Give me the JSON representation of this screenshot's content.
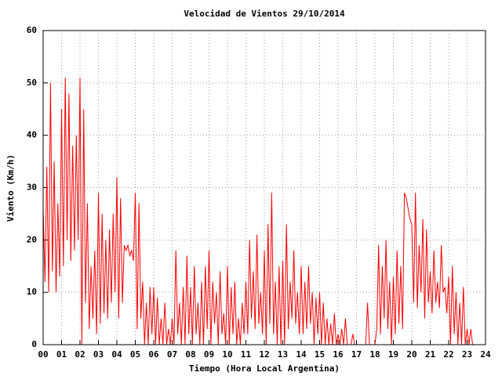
{
  "chart_data": {
    "type": "line",
    "title": "Velocidad de Vientos 29/10/2014",
    "x_label": "Tiempo (Hora Local Argentina)",
    "y_label": "Viento (Km/h)",
    "xlim": [
      0,
      24
    ],
    "ylim": [
      0,
      60
    ],
    "xticks": [
      {
        "value": 0,
        "label": "00"
      },
      {
        "value": 1,
        "label": "01"
      },
      {
        "value": 2,
        "label": "02"
      },
      {
        "value": 3,
        "label": "03"
      },
      {
        "value": 4,
        "label": "04"
      },
      {
        "value": 5,
        "label": "05"
      },
      {
        "value": 6,
        "label": "06"
      },
      {
        "value": 7,
        "label": "07"
      },
      {
        "value": 8,
        "label": "08"
      },
      {
        "value": 9,
        "label": "09"
      },
      10,
      11,
      12,
      13,
      14,
      15,
      16,
      17,
      18,
      19,
      20,
      21,
      22,
      23,
      24
    ],
    "yticks": [
      0,
      10,
      20,
      30,
      40,
      50,
      60
    ],
    "grid": true,
    "series": [
      {
        "color": "#ff0000",
        "x": [
          0,
          0.1,
          0.2,
          0.3,
          0.4,
          0.5,
          0.6,
          0.7,
          0.8,
          0.9,
          1,
          1.1,
          1.2,
          1.3,
          1.4,
          1.5,
          1.6,
          1.7,
          1.8,
          1.9,
          2,
          2.1,
          2.2,
          2.3,
          2.4,
          2.5,
          2.6,
          2.7,
          2.8,
          2.9,
          3,
          3.1,
          3.2,
          3.3,
          3.4,
          3.5,
          3.6,
          3.7,
          3.8,
          3.9,
          4,
          4.1,
          4.2,
          4.3,
          4.4,
          4.5,
          4.6,
          4.7,
          4.8,
          4.9,
          5,
          5.1,
          5.2,
          5.3,
          5.4,
          5.5,
          5.6,
          5.7,
          5.8,
          5.9,
          6,
          6.1,
          6.2,
          6.3,
          6.4,
          6.5,
          6.6,
          6.7,
          6.8,
          6.9,
          7,
          7.1,
          7.2,
          7.3,
          7.4,
          7.5,
          7.6,
          7.7,
          7.8,
          7.9,
          8,
          8.1,
          8.2,
          8.3,
          8.4,
          8.5,
          8.6,
          8.7,
          8.8,
          8.9,
          9,
          9.1,
          9.2,
          9.3,
          9.4,
          9.5,
          9.6,
          9.7,
          9.8,
          9.9,
          10,
          10.1,
          10.2,
          10.3,
          10.4,
          10.5,
          10.6,
          10.7,
          10.8,
          10.9,
          11,
          11.1,
          11.2,
          11.3,
          11.4,
          11.5,
          11.6,
          11.7,
          11.8,
          11.9,
          12,
          12.1,
          12.2,
          12.3,
          12.4,
          12.5,
          12.6,
          12.7,
          12.8,
          12.9,
          13,
          13.1,
          13.2,
          13.3,
          13.4,
          13.5,
          13.6,
          13.7,
          13.8,
          13.9,
          14,
          14.1,
          14.2,
          14.3,
          14.4,
          14.5,
          14.6,
          14.7,
          14.8,
          14.9,
          15,
          15.1,
          15.2,
          15.3,
          15.4,
          15.5,
          15.6,
          15.7,
          15.8,
          15.9,
          16,
          16.1,
          16.2,
          16.3,
          16.4,
          16.5,
          16.6,
          16.7,
          16.8,
          16.9,
          17,
          17.1,
          17.2,
          17.3,
          17.4,
          17.5,
          17.6,
          17.7,
          17.8,
          17.9,
          18,
          18.1,
          18.2,
          18.3,
          18.4,
          18.5,
          18.6,
          18.7,
          18.8,
          18.9,
          19,
          19.1,
          19.2,
          19.3,
          19.4,
          19.5,
          19.6,
          19.7,
          19.8,
          19.9,
          20,
          20.1,
          20.2,
          20.3,
          20.4,
          20.5,
          20.6,
          20.7,
          20.8,
          20.9,
          21,
          21.1,
          21.2,
          21.3,
          21.4,
          21.5,
          21.6,
          21.7,
          21.8,
          21.9,
          22,
          22.1,
          22.2,
          22.3,
          22.4,
          22.5,
          22.6,
          22.7,
          22.8,
          22.9,
          23,
          23.1,
          23.2,
          23.3
        ],
        "values": [
          26,
          12,
          34,
          10,
          50,
          14,
          35,
          10,
          27,
          13,
          45,
          15,
          51,
          20,
          48,
          16,
          38,
          18,
          40,
          20,
          51,
          0,
          45,
          8,
          27,
          3,
          15,
          5,
          18,
          2,
          29,
          4,
          25,
          6,
          20,
          5,
          22,
          8,
          25,
          10,
          32,
          5,
          28,
          8,
          19,
          18,
          19,
          17,
          18,
          16,
          29,
          3,
          27,
          5,
          12,
          0,
          8,
          0,
          11,
          2,
          11,
          0,
          9,
          0,
          5,
          0,
          8,
          0,
          3,
          0,
          5,
          0,
          18,
          2,
          8,
          0,
          11,
          0,
          17,
          2,
          11,
          0,
          15,
          2,
          8,
          0,
          12,
          0,
          15,
          3,
          18,
          0,
          12,
          4,
          10,
          0,
          14,
          2,
          6,
          0,
          15,
          0,
          11,
          2,
          12,
          0,
          5,
          0,
          8,
          2,
          12,
          2,
          20,
          5,
          14,
          3,
          21,
          4,
          10,
          2,
          18,
          0,
          23,
          4,
          29,
          2,
          12,
          0,
          15,
          0,
          16,
          0,
          23,
          3,
          12,
          5,
          18,
          4,
          10,
          2,
          15,
          2,
          12,
          3,
          15,
          4,
          10,
          0,
          9,
          2,
          10,
          0,
          8,
          0,
          5,
          0,
          4,
          0,
          6,
          0,
          2,
          0,
          3,
          0,
          5,
          0,
          0,
          0,
          2,
          0,
          0,
          0,
          0,
          0,
          0,
          0,
          8,
          0,
          0,
          0,
          0,
          3,
          19,
          2,
          15,
          5,
          20,
          3,
          12,
          0,
          13,
          2,
          18,
          4,
          15,
          3,
          29,
          28,
          26,
          24,
          23,
          8,
          29,
          7,
          19,
          10,
          24,
          5,
          22,
          8,
          14,
          6,
          18,
          8,
          12,
          7,
          19,
          10,
          11,
          6,
          13,
          0,
          15,
          2,
          10,
          0,
          8,
          0,
          11,
          0,
          3,
          0,
          3,
          0
        ]
      }
    ]
  }
}
